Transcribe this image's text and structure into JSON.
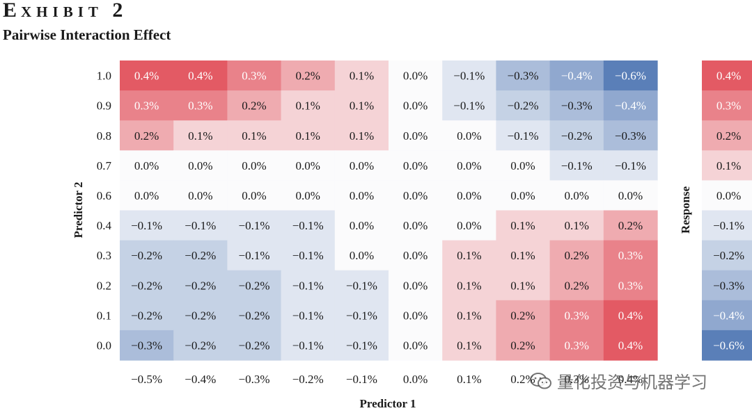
{
  "header": {
    "exhibit_word_initial": "E",
    "exhibit_word_rest": "XHIBIT",
    "exhibit_number": "2",
    "title": "Pairwise Interaction Effect"
  },
  "watermark": {
    "text": "量化投资与机器学习",
    "icon": "wechat-icon"
  },
  "colors": {
    "positive": "#e35a64",
    "negative": "#5a7fb8",
    "neutral": "#fbfbfc"
  },
  "chart_data": [
    {
      "type": "heatmap",
      "title": "Pairwise Interaction Effect",
      "xlabel": "Predictor 1",
      "ylabel": "Predictor 2",
      "x_ticks": [
        "−0.5%",
        "−0.4%",
        "−0.3%",
        "−0.2%",
        "−0.1%",
        "0.0%",
        "0.1%",
        "0.2%",
        "0.3%",
        "0.4%"
      ],
      "y_ticks": [
        "1.0",
        "0.9",
        "0.8",
        "0.7",
        "0.6",
        "0.4",
        "0.3",
        "0.2",
        "0.1",
        "0.0"
      ],
      "values": [
        [
          0.4,
          0.4,
          0.3,
          0.2,
          0.1,
          0.0,
          -0.1,
          -0.3,
          -0.4,
          -0.6
        ],
        [
          0.3,
          0.3,
          0.2,
          0.1,
          0.1,
          0.0,
          -0.1,
          -0.2,
          -0.3,
          -0.4
        ],
        [
          0.2,
          0.1,
          0.1,
          0.1,
          0.1,
          0.0,
          0.0,
          -0.1,
          -0.2,
          -0.3
        ],
        [
          0.0,
          0.0,
          0.0,
          0.0,
          0.0,
          0.0,
          0.0,
          0.0,
          -0.1,
          -0.1
        ],
        [
          0.0,
          0.0,
          0.0,
          0.0,
          0.0,
          0.0,
          0.0,
          0.0,
          0.0,
          0.0
        ],
        [
          -0.1,
          -0.1,
          -0.1,
          -0.1,
          0.0,
          0.0,
          0.0,
          0.1,
          0.1,
          0.2
        ],
        [
          -0.2,
          -0.2,
          -0.1,
          -0.1,
          0.0,
          0.0,
          0.1,
          0.1,
          0.2,
          0.3
        ],
        [
          -0.2,
          -0.2,
          -0.2,
          -0.1,
          -0.1,
          0.0,
          0.1,
          0.1,
          0.2,
          0.3
        ],
        [
          -0.2,
          -0.2,
          -0.2,
          -0.1,
          -0.1,
          0.0,
          0.1,
          0.2,
          0.3,
          0.4
        ],
        [
          -0.3,
          -0.2,
          -0.2,
          -0.1,
          -0.1,
          0.0,
          0.1,
          0.2,
          0.3,
          0.4
        ]
      ],
      "labels": [
        [
          "0.4%",
          "0.4%",
          "0.3%",
          "0.2%",
          "0.1%",
          "0.0%",
          "−0.1%",
          "−0.3%",
          "−0.4%",
          "−0.6%"
        ],
        [
          "0.3%",
          "0.3%",
          "0.2%",
          "0.1%",
          "0.1%",
          "0.0%",
          "−0.1%",
          "−0.2%",
          "−0.3%",
          "−0.4%"
        ],
        [
          "0.2%",
          "0.1%",
          "0.1%",
          "0.1%",
          "0.1%",
          "0.0%",
          "0.0%",
          "−0.1%",
          "−0.2%",
          "−0.3%"
        ],
        [
          "0.0%",
          "0.0%",
          "0.0%",
          "0.0%",
          "0.0%",
          "0.0%",
          "0.0%",
          "0.0%",
          "−0.1%",
          "−0.1%"
        ],
        [
          "0.0%",
          "0.0%",
          "0.0%",
          "0.0%",
          "0.0%",
          "0.0%",
          "0.0%",
          "0.0%",
          "0.0%",
          "0.0%"
        ],
        [
          "−0.1%",
          "−0.1%",
          "−0.1%",
          "−0.1%",
          "0.0%",
          "0.0%",
          "0.0%",
          "0.1%",
          "0.1%",
          "0.2%"
        ],
        [
          "−0.2%",
          "−0.2%",
          "−0.1%",
          "−0.1%",
          "0.0%",
          "0.0%",
          "0.1%",
          "0.1%",
          "0.2%",
          "0.3%"
        ],
        [
          "−0.2%",
          "−0.2%",
          "−0.2%",
          "−0.1%",
          "−0.1%",
          "0.0%",
          "0.1%",
          "0.1%",
          "0.2%",
          "0.3%"
        ],
        [
          "−0.2%",
          "−0.2%",
          "−0.2%",
          "−0.1%",
          "−0.1%",
          "0.0%",
          "0.1%",
          "0.2%",
          "0.3%",
          "0.4%"
        ],
        [
          "−0.3%",
          "−0.2%",
          "−0.2%",
          "−0.1%",
          "−0.1%",
          "0.0%",
          "0.1%",
          "0.2%",
          "0.3%",
          "0.4%"
        ]
      ],
      "color_range": [
        -0.6,
        0.4
      ]
    },
    {
      "type": "heatmap",
      "title": "",
      "ylabel": "Response",
      "values": [
        0.4,
        0.3,
        0.2,
        0.1,
        0.0,
        -0.1,
        -0.2,
        -0.3,
        -0.4,
        -0.6
      ],
      "labels": [
        "0.4%",
        "0.3%",
        "0.2%",
        "0.1%",
        "0.0%",
        "−0.1%",
        "−0.2%",
        "−0.3%",
        "−0.4%",
        "−0.6%"
      ],
      "color_range": [
        -0.6,
        0.4
      ]
    }
  ]
}
